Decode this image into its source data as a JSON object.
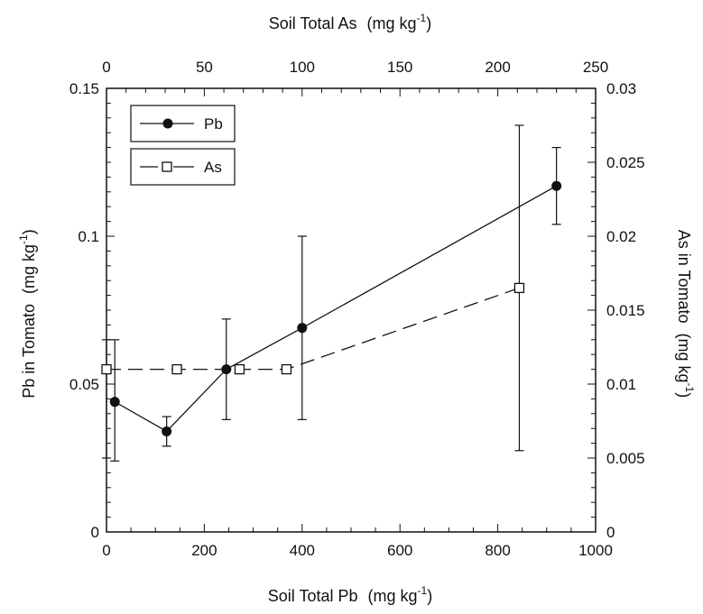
{
  "chart_data": {
    "type": "line",
    "x_bottom": {
      "label": "Soil Total Pb",
      "unit_prefix": "(mg kg",
      "unit_sup": "-1",
      "unit_suffix": ")",
      "range": [
        0,
        1000
      ],
      "ticks": [
        0,
        200,
        400,
        600,
        800,
        1000
      ]
    },
    "x_top": {
      "label": "Soil Total As",
      "unit_prefix": "(mg kg",
      "unit_sup": "-1",
      "unit_suffix": ")",
      "range": [
        0,
        250
      ],
      "ticks": [
        0,
        50,
        100,
        150,
        200,
        250
      ]
    },
    "y_left": {
      "label": "Pb in Tomato",
      "unit_prefix": "(mg kg",
      "unit_sup": "-1",
      "unit_suffix": ")",
      "range": [
        0,
        0.15
      ],
      "ticks": [
        "0",
        "0.05",
        "0.1",
        "0.15"
      ]
    },
    "y_right": {
      "label": "As in Tomato",
      "unit_prefix": "(mg kg",
      "unit_sup": "-1",
      "unit_suffix": ")",
      "range": [
        0,
        0.03
      ],
      "ticks": [
        "0",
        "0.005",
        "0.01",
        "0.015",
        "0.02",
        "0.025",
        "0.03"
      ]
    },
    "series": [
      {
        "name": "Pb",
        "axes": "bottom-left",
        "marker": "filled-circle",
        "line": "solid",
        "x": [
          17,
          123,
          245,
          400,
          920
        ],
        "y": [
          0.044,
          0.034,
          0.055,
          0.069,
          0.117
        ],
        "err_low": [
          0.024,
          0.029,
          0.038,
          0.038,
          0.104
        ],
        "err_high": [
          0.065,
          0.039,
          0.072,
          0.1,
          0.13
        ]
      },
      {
        "name": "As",
        "axes": "top-right",
        "marker": "open-square",
        "line": "dashed",
        "x": [
          0,
          36,
          68,
          92,
          211
        ],
        "y": [
          0.011,
          0.011,
          0.011,
          0.011,
          0.0165
        ],
        "err_low": [
          0.005,
          null,
          null,
          null,
          0.0055
        ],
        "err_high": [
          0.013,
          null,
          null,
          null,
          0.0275
        ]
      }
    ],
    "legend": {
      "placement": "top-left",
      "entries": [
        "Pb",
        "As"
      ]
    },
    "grid": false
  }
}
